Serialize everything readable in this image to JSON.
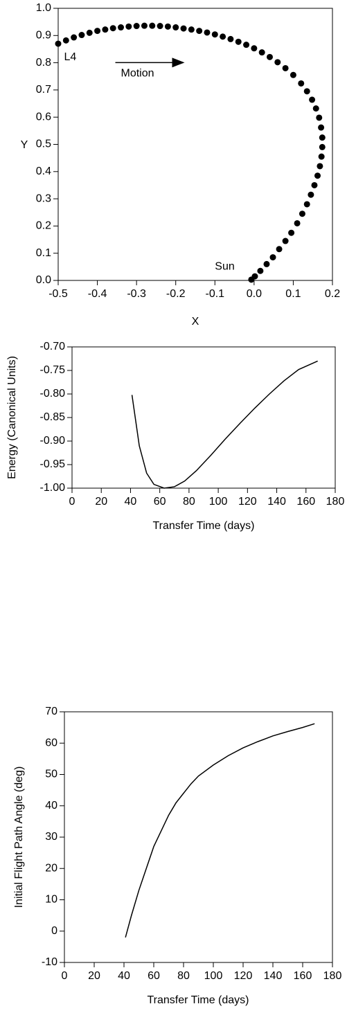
{
  "chart_data": [
    {
      "type": "scatter",
      "xlabel": "X",
      "ylabel": "Y",
      "color": "#000000",
      "xlim": [
        -0.5,
        0.2
      ],
      "ylim": [
        0,
        1
      ],
      "xticks": [
        -0.5,
        -0.4,
        -0.3,
        -0.2,
        -0.1,
        {
          "value": 0,
          "label": "0.0"
        },
        0.1,
        0.2
      ],
      "yticks": [
        {
          "value": 0,
          "label": "0.0"
        },
        0.1,
        0.2,
        0.3,
        0.4,
        0.5,
        0.6,
        0.7,
        0.8,
        0.9,
        {
          "value": 1,
          "label": "1.0"
        }
      ],
      "x": [
        -0.5,
        -0.48,
        -0.46,
        -0.44,
        -0.42,
        -0.4,
        -0.38,
        -0.36,
        -0.34,
        -0.32,
        -0.3,
        -0.28,
        -0.26,
        -0.24,
        -0.22,
        -0.2,
        -0.18,
        -0.16,
        -0.14,
        -0.12,
        -0.1,
        -0.08,
        -0.06,
        -0.04,
        -0.02,
        0,
        0.02,
        0.04,
        0.06,
        0.08,
        0.1,
        0.12,
        0.135,
        0.148,
        0.158,
        0.166,
        0.171,
        0.174,
        0.174,
        0.172,
        0.168,
        0.162,
        0.154,
        0.145,
        0.135,
        0.123,
        0.11,
        0.095,
        0.08,
        0.064,
        0.048,
        0.032,
        0.016,
        0.002,
        -0.007
      ],
      "values": [
        0.87,
        0.882,
        0.893,
        0.902,
        0.91,
        0.917,
        0.922,
        0.927,
        0.93,
        0.933,
        0.935,
        0.936,
        0.936,
        0.935,
        0.933,
        0.93,
        0.926,
        0.922,
        0.917,
        0.911,
        0.904,
        0.896,
        0.887,
        0.877,
        0.866,
        0.853,
        0.838,
        0.821,
        0.802,
        0.78,
        0.755,
        0.724,
        0.695,
        0.664,
        0.632,
        0.598,
        0.562,
        0.525,
        0.49,
        0.455,
        0.42,
        0.385,
        0.35,
        0.315,
        0.28,
        0.245,
        0.21,
        0.175,
        0.145,
        0.115,
        0.085,
        0.06,
        0.035,
        0.015,
        0.003
      ],
      "annotations": [
        {
          "text": "L4",
          "x": -0.485,
          "y": 0.82
        },
        {
          "text": "Motion",
          "x": -0.34,
          "y": 0.76,
          "arrow": true
        },
        {
          "text": "Sun",
          "x": -0.1,
          "y": 0.05
        }
      ]
    },
    {
      "type": "line",
      "xlabel": "Transfer Time (days)",
      "ylabel": "Energy (Canonical Units)",
      "color": "#000000",
      "xlim": [
        0,
        180
      ],
      "ylim": [
        -1,
        -0.7
      ],
      "xticks": [
        0,
        20,
        40,
        60,
        80,
        100,
        120,
        140,
        160,
        180
      ],
      "yticks": [
        {
          "value": -1,
          "label": "-1.00"
        },
        -0.95,
        {
          "value": -0.9,
          "label": "-0.90"
        },
        -0.85,
        {
          "value": -0.8,
          "label": "-0.80"
        },
        -0.75,
        {
          "value": -0.7,
          "label": "-0.70"
        }
      ],
      "x": [
        41,
        46,
        51,
        56,
        63,
        70,
        77,
        85,
        95,
        105,
        115,
        125,
        135,
        145,
        155,
        168
      ],
      "values": [
        -0.802,
        -0.91,
        -0.968,
        -0.992,
        -1.0,
        -0.997,
        -0.985,
        -0.963,
        -0.93,
        -0.895,
        -0.862,
        -0.83,
        -0.8,
        -0.772,
        -0.748,
        -0.73
      ]
    },
    {
      "type": "line",
      "xlabel": "Transfer Time (days)",
      "ylabel": "Initial Flight Path Angle (deg)",
      "color": "#000000",
      "xlim": [
        0,
        180
      ],
      "ylim": [
        -10,
        70
      ],
      "xticks": [
        0,
        20,
        40,
        60,
        80,
        100,
        120,
        140,
        160,
        180
      ],
      "yticks": [
        -10,
        0,
        10,
        20,
        30,
        40,
        50,
        60,
        70
      ],
      "x": [
        41,
        45,
        50,
        55,
        60,
        65,
        70,
        75,
        80,
        85,
        90,
        100,
        110,
        120,
        130,
        140,
        150,
        160,
        168
      ],
      "values": [
        -2,
        5,
        13,
        20,
        27,
        32,
        37,
        41,
        44,
        47,
        49.5,
        53,
        56,
        58.5,
        60.5,
        62.3,
        63.7,
        65,
        66.2
      ]
    }
  ]
}
